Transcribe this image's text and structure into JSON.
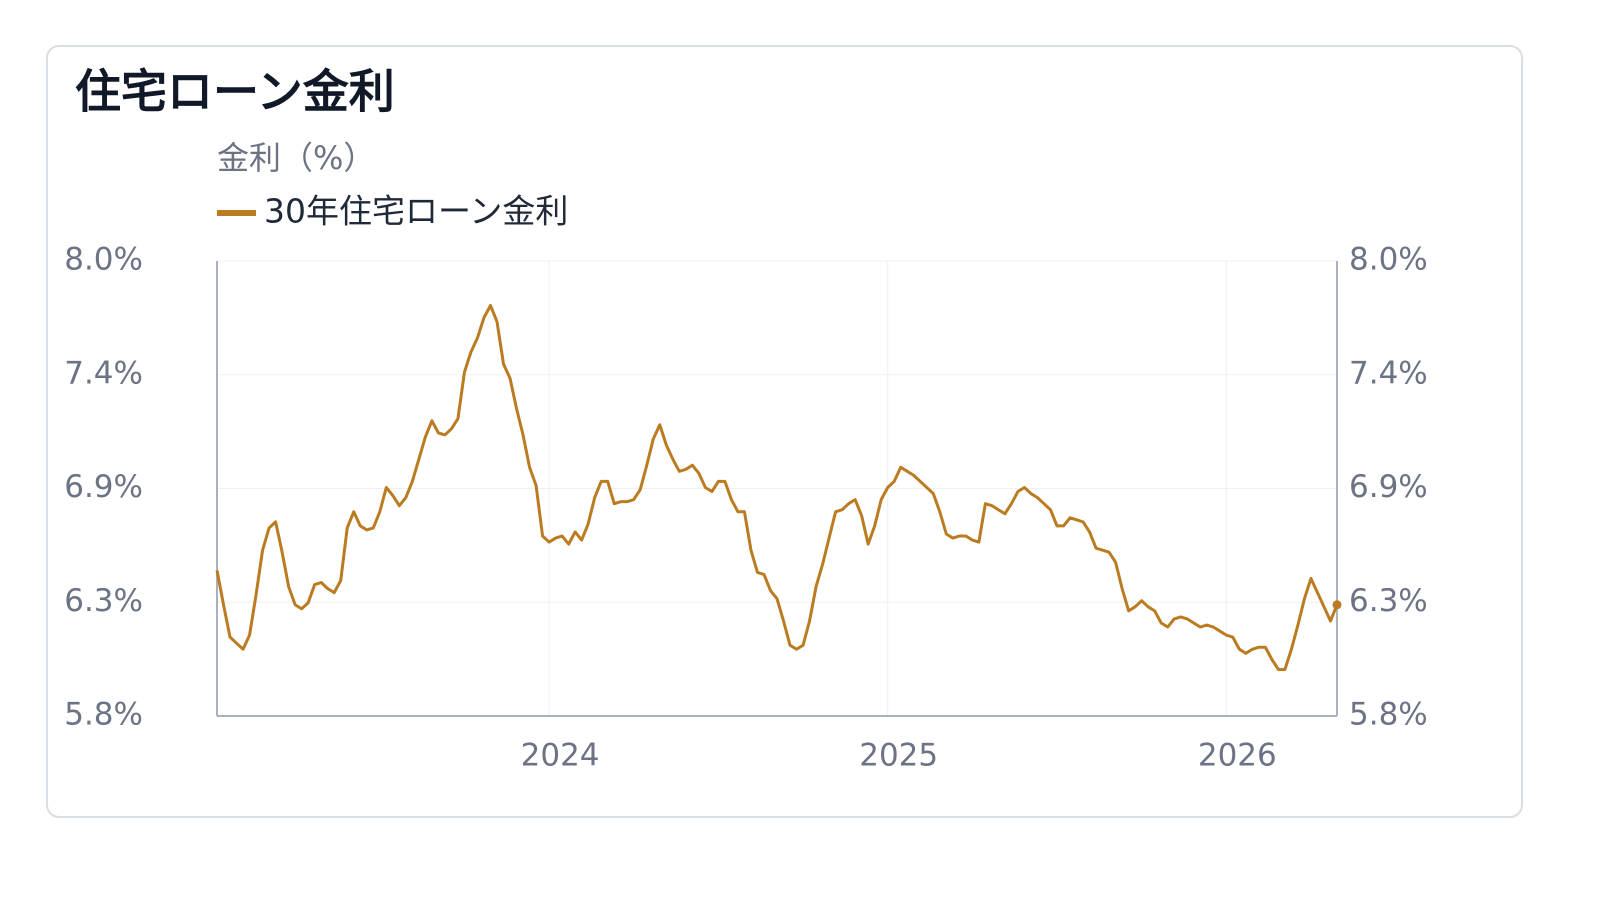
{
  "chart_data": {
    "type": "line",
    "title": "住宅ローン金利",
    "y_label": "金利（%）",
    "legend": "top-left",
    "grid": true,
    "ylim": [
      5.75,
      8.0
    ],
    "yticks": [
      {
        "value": 5.75,
        "label": "5.8%"
      },
      {
        "value": 6.3125,
        "label": "6.3%"
      },
      {
        "value": 6.875,
        "label": "6.9%"
      },
      {
        "value": 7.4375,
        "label": "7.4%"
      },
      {
        "value": 8.0,
        "label": "8.0%"
      }
    ],
    "y2lim": [
      5.75,
      8.0
    ],
    "y2ticks": [
      {
        "value": 5.75,
        "label": "5.8%"
      },
      {
        "value": 6.3125,
        "label": "6.3%"
      },
      {
        "value": 6.875,
        "label": "6.9%"
      },
      {
        "value": 7.4375,
        "label": "7.4%"
      },
      {
        "value": 8.0,
        "label": "8.0%"
      }
    ],
    "categories": [
      null,
      null,
      null,
      null,
      null,
      null,
      null,
      null,
      null,
      null,
      null,
      null,
      null,
      null,
      null,
      null,
      null,
      null,
      null,
      null,
      null,
      null,
      null,
      null,
      null,
      null,
      null,
      null,
      null,
      null,
      null,
      null,
      null,
      null,
      null,
      null,
      null,
      null,
      null,
      null,
      null,
      null,
      null,
      null,
      null,
      null,
      null,
      null,
      null,
      null,
      null,
      "2024",
      null,
      null,
      null,
      null,
      null,
      null,
      null,
      null,
      null,
      null,
      null,
      null,
      null,
      null,
      null,
      null,
      null,
      null,
      null,
      null,
      null,
      null,
      null,
      null,
      null,
      null,
      null,
      null,
      null,
      null,
      null,
      null,
      null,
      null,
      null,
      null,
      null,
      null,
      null,
      null,
      null,
      null,
      null,
      null,
      null,
      null,
      null,
      null,
      null,
      null,
      null,
      "2025",
      null,
      null,
      null,
      null,
      null,
      null,
      null,
      null,
      null,
      null,
      null,
      null,
      null,
      null,
      null,
      null,
      null,
      null,
      null,
      null,
      null,
      null,
      null,
      null,
      null,
      null,
      null,
      null,
      null,
      null,
      null,
      null,
      null,
      null,
      null,
      null,
      null,
      null,
      null,
      null,
      null,
      null,
      null,
      null,
      null,
      null,
      null,
      null,
      null,
      null,
      null,
      "2026",
      null,
      null,
      null,
      null,
      null,
      null,
      null,
      null,
      null,
      null,
      null,
      null,
      null,
      null,
      null,
      null,
      null
    ],
    "series": [
      {
        "name": "30年住宅ローン金利",
        "color": "#bb7b21",
        "values": [
          6.47,
          6.3,
          6.14,
          6.11,
          6.08,
          6.15,
          6.35,
          6.57,
          6.68,
          6.71,
          6.56,
          6.39,
          6.3,
          6.28,
          6.31,
          6.4,
          6.41,
          6.38,
          6.36,
          6.42,
          6.68,
          6.76,
          6.69,
          6.67,
          6.68,
          6.76,
          6.88,
          6.84,
          6.79,
          6.83,
          6.91,
          7.02,
          7.13,
          7.21,
          7.15,
          7.14,
          7.17,
          7.22,
          7.45,
          7.55,
          7.62,
          7.72,
          7.78,
          7.7,
          7.49,
          7.42,
          7.27,
          7.14,
          6.98,
          6.89,
          6.64,
          6.61,
          6.63,
          6.64,
          6.6,
          6.66,
          6.62,
          6.7,
          6.83,
          6.91,
          6.91,
          6.8,
          6.81,
          6.81,
          6.82,
          6.87,
          6.99,
          7.12,
          7.19,
          7.09,
          7.02,
          6.96,
          6.97,
          6.99,
          6.95,
          6.88,
          6.86,
          6.91,
          6.91,
          6.82,
          6.76,
          6.76,
          6.57,
          6.46,
          6.45,
          6.37,
          6.33,
          6.22,
          6.1,
          6.08,
          6.1,
          6.22,
          6.39,
          6.5,
          6.63,
          6.76,
          6.77,
          6.8,
          6.82,
          6.74,
          6.6,
          6.69,
          6.82,
          6.88,
          6.91,
          6.98,
          6.96,
          6.94,
          6.91,
          6.88,
          6.85,
          6.76,
          6.65,
          6.63,
          6.64,
          6.64,
          6.62,
          6.61,
          6.8,
          6.79,
          6.77,
          6.75,
          6.8,
          6.86,
          6.88,
          6.85,
          6.83,
          6.8,
          6.77,
          6.69,
          6.69,
          6.73,
          6.72,
          6.71,
          6.66,
          6.58,
          6.57,
          6.56,
          6.51,
          6.38,
          6.27,
          6.29,
          6.32,
          6.29,
          6.27,
          6.21,
          6.19,
          6.23,
          6.24,
          6.23,
          6.21,
          6.19,
          6.2,
          6.19,
          6.17,
          6.15,
          6.14,
          6.08,
          6.06,
          6.08,
          6.09,
          6.09,
          6.03,
          5.98,
          5.98,
          6.08,
          6.2,
          6.33,
          6.43,
          6.36,
          6.29,
          6.22,
          6.3
        ]
      }
    ]
  }
}
